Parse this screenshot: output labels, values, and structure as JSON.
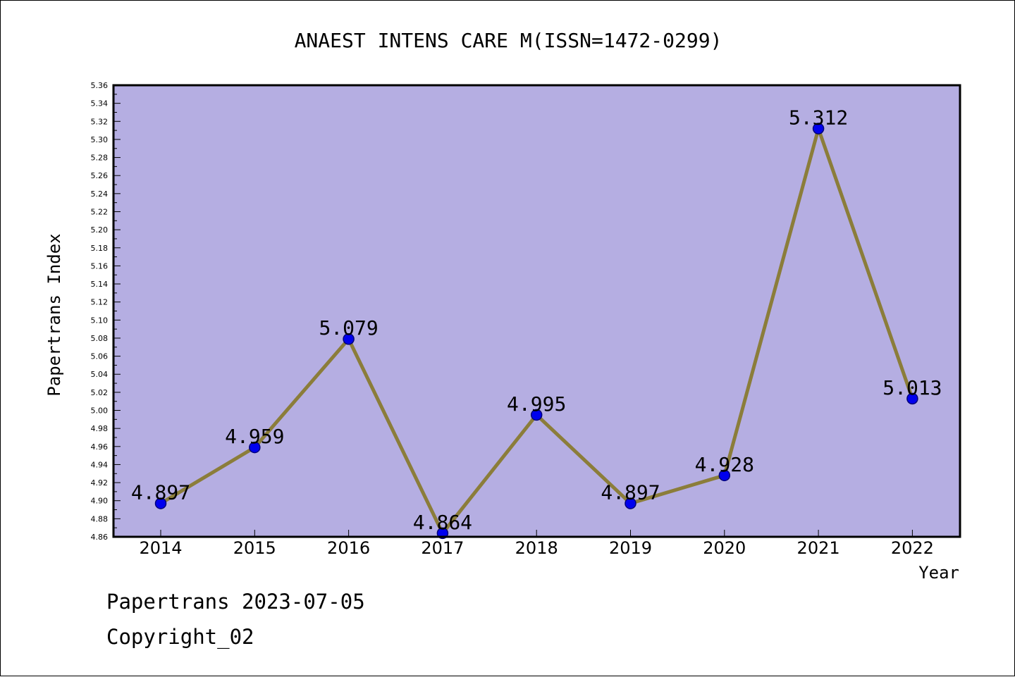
{
  "chart_data": {
    "type": "line",
    "title": "ANAEST INTENS CARE M(ISSN=1472-0299)",
    "xlabel": "Year",
    "ylabel": "Papertrans Index",
    "categories": [
      "2014",
      "2015",
      "2016",
      "2017",
      "2018",
      "2019",
      "2020",
      "2021",
      "2022"
    ],
    "values": [
      4.897,
      4.959,
      5.079,
      4.864,
      4.995,
      4.897,
      4.928,
      5.312,
      5.013
    ],
    "data_labels": [
      "4.897",
      "4.959",
      "5.079",
      "4.864",
      "4.995",
      "4.897",
      "4.928",
      "5.312",
      "5.013"
    ],
    "ylim": [
      4.86,
      5.36
    ],
    "yticks": [
      "4.86",
      "4.88",
      "4.90",
      "4.92",
      "4.94",
      "4.96",
      "4.98",
      "5.00",
      "5.02",
      "5.04",
      "5.06",
      "5.08",
      "5.10",
      "5.12",
      "5.14",
      "5.16",
      "5.18",
      "5.20",
      "5.22",
      "5.24",
      "5.26",
      "5.28",
      "5.30",
      "5.32",
      "5.34",
      "5.36"
    ],
    "grid": false,
    "colors": {
      "plot_background": "#b5aee2",
      "line": "#8b7d3a",
      "marker": "#0000ee",
      "marker_edge": "#00007a"
    }
  },
  "footer": {
    "line1": "Papertrans 2023-07-05",
    "line2": "Copyright_02"
  }
}
